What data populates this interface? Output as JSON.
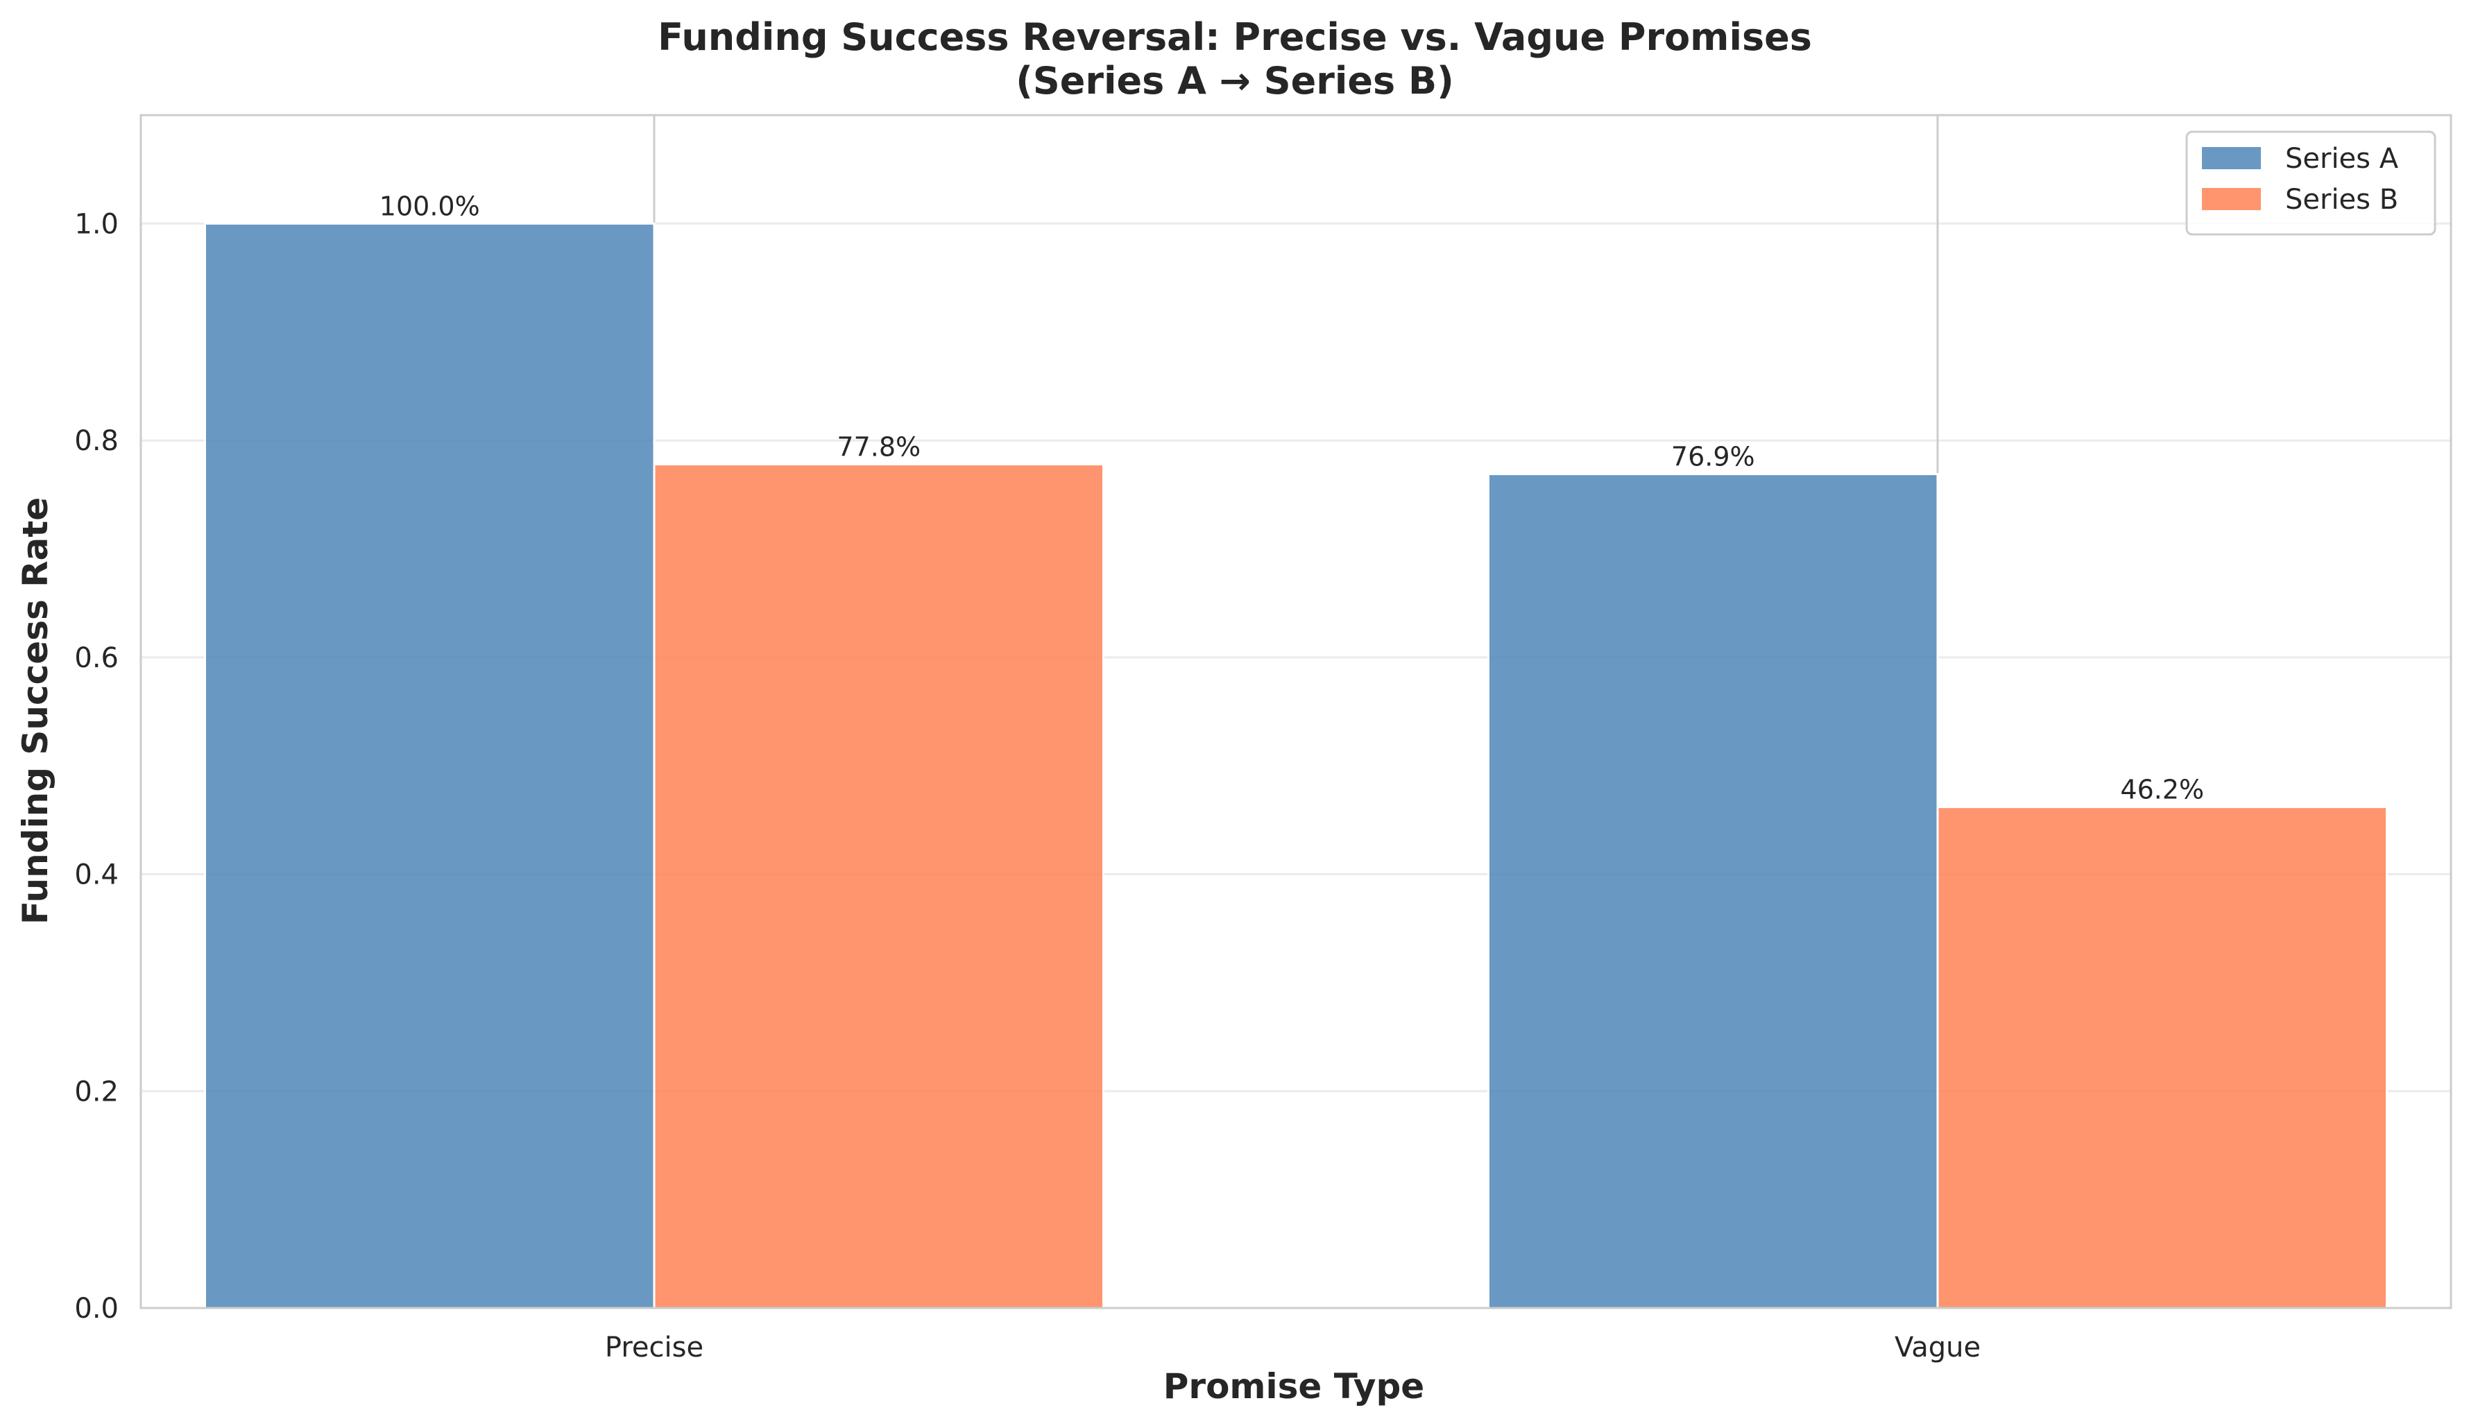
{
  "chart_data": {
    "type": "bar",
    "title": "Funding Success Reversal: Precise vs. Vague Promises\n(Series A → Series B)",
    "xlabel": "Promise Type",
    "ylabel": "Funding Success Rate",
    "categories": [
      "Precise",
      "Vague"
    ],
    "series": [
      {
        "name": "Series A",
        "values": [
          1.0,
          0.769
        ],
        "labels": [
          "100.0%",
          "76.9%"
        ],
        "color": "#4f86b8"
      },
      {
        "name": "Series B",
        "values": [
          0.778,
          0.462
        ],
        "labels": [
          "77.8%",
          "46.2%"
        ],
        "color": "#ff8256"
      }
    ],
    "ylim": [
      0,
      1.1
    ],
    "yticks": [
      0.0,
      0.2,
      0.4,
      0.6,
      0.8,
      1.0
    ],
    "ytick_labels": [
      "0.0",
      "0.2",
      "0.4",
      "0.6",
      "0.8",
      "1.0"
    ],
    "grid": true,
    "legend_position": "top-right",
    "colors": {
      "axes_edge": "#cccccc",
      "grid": "#ebebeb",
      "text": "#262626"
    }
  }
}
